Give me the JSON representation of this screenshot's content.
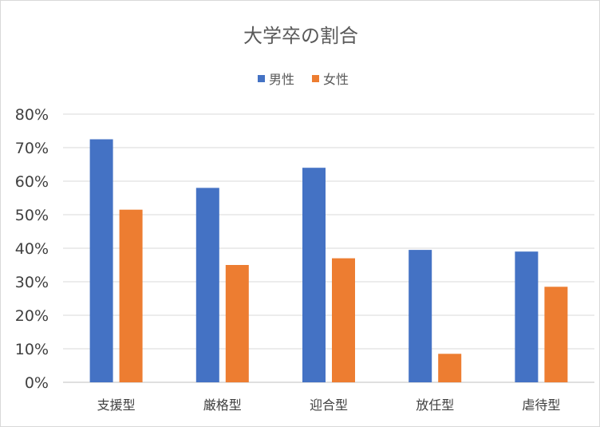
{
  "chart_data": {
    "type": "bar",
    "title": "大学卒の割合",
    "categories": [
      "支援型",
      "厳格型",
      "迎合型",
      "放任型",
      "虐待型"
    ],
    "series": [
      {
        "name": "男性",
        "color": "#4472C4",
        "values": [
          72.5,
          58,
          64,
          39.5,
          39
        ]
      },
      {
        "name": "女性",
        "color": "#ED7D31",
        "values": [
          51.5,
          35,
          37,
          8.5,
          28.5
        ]
      }
    ],
    "ylim": [
      0,
      80
    ],
    "yticks": [
      "0%",
      "10%",
      "20%",
      "30%",
      "40%",
      "50%",
      "60%",
      "70%",
      "80%"
    ],
    "grid": true,
    "legend": "top-center"
  }
}
